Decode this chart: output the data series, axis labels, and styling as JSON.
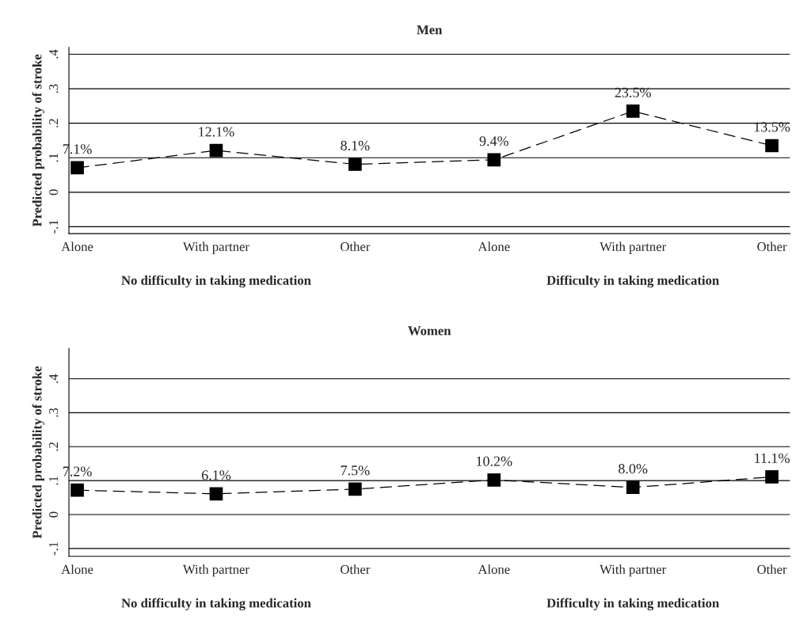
{
  "chart_data": [
    {
      "type": "line",
      "title": "Men",
      "ylabel": "Predicted probability of stroke",
      "categories": [
        "Alone",
        "With partner",
        "Other",
        "Alone",
        "With partner",
        "Other"
      ],
      "series": [
        {
          "color": "#000000",
          "values": [
            0.071,
            0.121,
            0.081,
            0.094,
            0.235,
            0.135
          ],
          "value_labels": [
            "7.1%",
            "12.1%",
            "8.1%",
            "9.4%",
            "23.5%",
            "13.5%"
          ]
        }
      ],
      "ylim": [
        -0.12,
        0.42
      ],
      "yticks": [
        {
          "value": -0.1,
          "label": "-.1"
        },
        0,
        {
          "value": 0.1,
          "label": ".1"
        },
        {
          "value": 0.2,
          "label": ".2"
        },
        {
          "value": 0.3,
          "label": ".3"
        },
        {
          "value": 0.4,
          "label": ".4"
        }
      ],
      "grid": "y",
      "marker": "square",
      "line_style": "dashed",
      "annotations": [
        "No difficulty in taking medication",
        "Difficulty in taking medication"
      ]
    },
    {
      "type": "line",
      "title": "Women",
      "ylabel": "Predicted probability of stroke",
      "categories": [
        "Alone",
        "With partner",
        "Other",
        "Alone",
        "With partner",
        "Other"
      ],
      "series": [
        {
          "color": "#000000",
          "values": [
            0.072,
            0.061,
            0.075,
            0.102,
            0.08,
            0.111
          ],
          "value_labels": [
            "7.2%",
            "6.1%",
            "7.5%",
            "10.2%",
            "8.0%",
            "11.1%"
          ]
        }
      ],
      "ylim": [
        -0.123,
        0.49
      ],
      "yticks": [
        {
          "value": -0.1,
          "label": "-.1"
        },
        0,
        {
          "value": 0.1,
          "label": ".1"
        },
        {
          "value": 0.2,
          "label": ".2"
        },
        {
          "value": 0.3,
          "label": ".3"
        },
        {
          "value": 0.4,
          "label": ".4"
        }
      ],
      "grid": "y",
      "marker": "square",
      "line_style": "dashed",
      "annotations": [
        "No difficulty in taking medication",
        "Difficulty in taking medication"
      ]
    }
  ]
}
